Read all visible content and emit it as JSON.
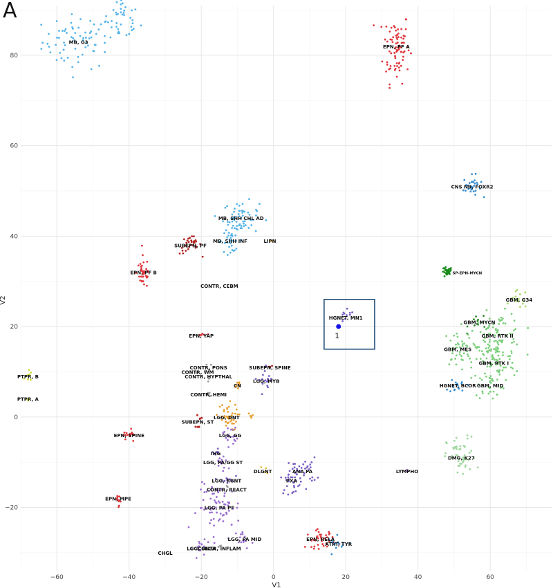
{
  "panel_label": "A",
  "chart_data": {
    "type": "scatter",
    "title": "",
    "xlabel": "V1",
    "ylabel": "V2",
    "xlim": [
      -70,
      77
    ],
    "ylim": [
      -34,
      91
    ],
    "x_ticks": [
      -60,
      -40,
      -20,
      0,
      20,
      40,
      60
    ],
    "y_ticks": [
      -20,
      0,
      20,
      40,
      60,
      80
    ],
    "grid": true,
    "clusters": [
      {
        "label": "MB, G3",
        "cx": -54,
        "cy": 83,
        "sx": 5,
        "sy": 3,
        "n": 70,
        "color": "#56b4e9"
      },
      {
        "label": "",
        "cx": -42,
        "cy": 88,
        "sx": 2.5,
        "sy": 2.5,
        "n": 40,
        "color": "#56b4e9"
      },
      {
        "label": "EPN, PF A",
        "cx": 34,
        "cy": 82,
        "sx": 1.8,
        "sy": 4,
        "n": 80,
        "color": "#e0383e"
      },
      {
        "label": "CNS NB, FOXR2",
        "cx": 55,
        "cy": 51,
        "sx": 1.2,
        "sy": 1.2,
        "n": 30,
        "color": "#3a8fd0"
      },
      {
        "label": "MB, SHH CHL AD",
        "cx": -9,
        "cy": 44,
        "sx": 2.5,
        "sy": 1.8,
        "n": 60,
        "color": "#56b4e9"
      },
      {
        "label": "MB, SHH INF",
        "cx": -12,
        "cy": 39,
        "sx": 1.8,
        "sy": 1.2,
        "n": 30,
        "color": "#56b4e9"
      },
      {
        "label": "LIPN",
        "cx": -1,
        "cy": 39,
        "sx": 0.3,
        "sy": 0.3,
        "n": 2,
        "color": "#e6b830"
      },
      {
        "label": "SUBEPN, PF",
        "cx": -23,
        "cy": 38,
        "sx": 1.5,
        "sy": 1,
        "n": 30,
        "color": "#b22222"
      },
      {
        "label": "EPN, PF B",
        "cx": -36,
        "cy": 32,
        "sx": 1,
        "sy": 1.8,
        "n": 40,
        "color": "#e0383e"
      },
      {
        "label": "CONTR, CEBM",
        "cx": -15,
        "cy": 29,
        "sx": 0.5,
        "sy": 0.5,
        "n": 0,
        "color": "#999999"
      },
      {
        "label": "SP-EPN-MYCN",
        "cx": 48,
        "cy": 32,
        "sx": 0.7,
        "sy": 0.6,
        "n": 30,
        "color": "#1a8a1a"
      },
      {
        "label": "GBM, G34",
        "cx": 68,
        "cy": 26,
        "sx": 1.2,
        "sy": 1,
        "n": 15,
        "color": "#a6d96a"
      },
      {
        "label": "HGNET, MN1",
        "cx": 20,
        "cy": 22,
        "sx": 1.2,
        "sy": 0.8,
        "n": 10,
        "color": "#7b61c4"
      },
      {
        "label": "GBM, MYCN",
        "cx": 57,
        "cy": 21,
        "sx": 1.5,
        "sy": 1,
        "n": 10,
        "color": "#2e8b2e"
      },
      {
        "label": "GBM, RTK II",
        "cx": 62,
        "cy": 18,
        "sx": 3.5,
        "sy": 2.5,
        "n": 90,
        "color": "#7ccf7c"
      },
      {
        "label": "EPN, YAP",
        "cx": -20,
        "cy": 18,
        "sx": 0.6,
        "sy": 0.4,
        "n": 6,
        "color": "#e0383e"
      },
      {
        "label": "GBM, MES",
        "cx": 51,
        "cy": 15,
        "sx": 2,
        "sy": 2,
        "n": 40,
        "color": "#7ccf7c"
      },
      {
        "label": "GBM, RTK I",
        "cx": 61,
        "cy": 12,
        "sx": 3,
        "sy": 3,
        "n": 70,
        "color": "#7ccf7c"
      },
      {
        "label": "CONTR, PONS",
        "cx": -18,
        "cy": 11,
        "sx": 0.6,
        "sy": 0.6,
        "n": 4,
        "color": "#999999"
      },
      {
        "label": "CONTR, WM",
        "cx": -21,
        "cy": 10,
        "sx": 0.4,
        "sy": 0.4,
        "n": 2,
        "color": "#999999"
      },
      {
        "label": "CONTR, HYPTHAL",
        "cx": -18,
        "cy": 9,
        "sx": 0.4,
        "sy": 0.4,
        "n": 2,
        "color": "#999999"
      },
      {
        "label": "SUBEPN, SPINE",
        "cx": -1,
        "cy": 11,
        "sx": 0.4,
        "sy": 0.4,
        "n": 4,
        "color": "#b22222"
      },
      {
        "label": "LGG, MYB",
        "cx": -2,
        "cy": 8,
        "sx": 1,
        "sy": 1.8,
        "n": 20,
        "color": "#7b61c4"
      },
      {
        "label": "PTPR, B",
        "cx": -68,
        "cy": 9,
        "sx": 0.5,
        "sy": 0.8,
        "n": 8,
        "color": "#cddc39"
      },
      {
        "label": "PTPR, A",
        "cx": -68,
        "cy": 4,
        "sx": 0.3,
        "sy": 0.3,
        "n": 3,
        "color": "#cddc39"
      },
      {
        "label": "HGNET, BCOR",
        "cx": 51,
        "cy": 7,
        "sx": 1.2,
        "sy": 0.8,
        "n": 15,
        "color": "#3a8fd0"
      },
      {
        "label": "GBM, MID",
        "cx": 60,
        "cy": 7,
        "sx": 2,
        "sy": 1.5,
        "n": 25,
        "color": "#7ccf7c"
      },
      {
        "label": "CN",
        "cx": -10,
        "cy": 7,
        "sx": 0.5,
        "sy": 0.6,
        "n": 10,
        "color": "#e6a030"
      },
      {
        "label": "CONTR, HEMI",
        "cx": -18,
        "cy": 5,
        "sx": 0.7,
        "sy": 0.5,
        "n": 4,
        "color": "#999999"
      },
      {
        "label": "LGG, DNT",
        "cx": -13,
        "cy": 0,
        "sx": 1.5,
        "sy": 1.5,
        "n": 40,
        "color": "#e6a030"
      },
      {
        "label": "",
        "cx": -6,
        "cy": 0,
        "sx": 0.5,
        "sy": 0.4,
        "n": 5,
        "color": "#e6a030"
      },
      {
        "label": "SUBEPN, ST",
        "cx": -21,
        "cy": -1,
        "sx": 0.5,
        "sy": 0.8,
        "n": 8,
        "color": "#b22222"
      },
      {
        "label": "EPN, SPINE",
        "cx": -40,
        "cy": -4,
        "sx": 0.8,
        "sy": 1,
        "n": 15,
        "color": "#e0383e"
      },
      {
        "label": "LGG, GG",
        "cx": -12,
        "cy": -4,
        "sx": 1,
        "sy": 1.2,
        "n": 20,
        "color": "#9b6fd0"
      },
      {
        "label": "DMG, K27",
        "cx": 52,
        "cy": -9,
        "sx": 2,
        "sy": 2.3,
        "n": 50,
        "color": "#9ed89e"
      },
      {
        "label": "IHG",
        "cx": -16,
        "cy": -8,
        "sx": 0.6,
        "sy": 0.6,
        "n": 6,
        "color": "#7b61c4"
      },
      {
        "label": "LGG, PA/GG ST",
        "cx": -14,
        "cy": -10,
        "sx": 1.5,
        "sy": 1.2,
        "n": 15,
        "color": "#9b6fd0"
      },
      {
        "label": "ANA PA",
        "cx": 8,
        "cy": -12,
        "sx": 2,
        "sy": 1.5,
        "n": 35,
        "color": "#7b61c4"
      },
      {
        "label": "PXA",
        "cx": 5,
        "cy": -14,
        "sx": 1.5,
        "sy": 1.5,
        "n": 25,
        "color": "#7b61c4"
      },
      {
        "label": "DLGNT",
        "cx": -3,
        "cy": -12,
        "sx": 0.6,
        "sy": 0.4,
        "n": 4,
        "color": "#e6b830"
      },
      {
        "label": "LYMPHO",
        "cx": 37,
        "cy": -12,
        "sx": 0.3,
        "sy": 0.3,
        "n": 2,
        "color": "#9b6fd0"
      },
      {
        "label": "LGG, RGNT",
        "cx": -13,
        "cy": -14,
        "sx": 1,
        "sy": 0.8,
        "n": 10,
        "color": "#7b61c4"
      },
      {
        "label": "CONTR, REACT",
        "cx": -13,
        "cy": -16,
        "sx": 0.5,
        "sy": 0.5,
        "n": 3,
        "color": "#999999"
      },
      {
        "label": "EPN, MPE",
        "cx": -43,
        "cy": -18,
        "sx": 0.7,
        "sy": 0.8,
        "n": 12,
        "color": "#e0383e"
      },
      {
        "label": "LGG, PA PF",
        "cx": -15,
        "cy": -20,
        "sx": 3,
        "sy": 2.5,
        "n": 70,
        "color": "#9b6fd0"
      },
      {
        "label": "LGG, PA MID",
        "cx": -8,
        "cy": -27,
        "sx": 1.2,
        "sy": 1,
        "n": 15,
        "color": "#9b6fd0"
      },
      {
        "label": "EPN, RELA",
        "cx": 13,
        "cy": -27,
        "sx": 2,
        "sy": 1,
        "n": 40,
        "color": "#e0383e"
      },
      {
        "label": "ATRT, TYR",
        "cx": 18,
        "cy": -28,
        "sx": 1.5,
        "sy": 0.8,
        "n": 15,
        "color": "#3a8fd0"
      },
      {
        "label": "CONTR, INFLAM",
        "cx": -15,
        "cy": -29,
        "sx": 0.8,
        "sy": 0.5,
        "n": 4,
        "color": "#999999"
      },
      {
        "label": "LGG, SEGA",
        "cx": -20,
        "cy": -29,
        "sx": 1.2,
        "sy": 1,
        "n": 15,
        "color": "#9b6fd0"
      },
      {
        "label": "CHGL",
        "cx": -30,
        "cy": -30,
        "sx": 0.3,
        "sy": 0.3,
        "n": 0,
        "color": "#999999"
      }
    ],
    "highlight_point": {
      "label": "1",
      "x": 18,
      "y": 20,
      "color": "#1414e6"
    },
    "highlight_box": {
      "x0": 14,
      "x1": 28,
      "y0": 15,
      "y1": 26,
      "color": "#1f4e79"
    }
  }
}
